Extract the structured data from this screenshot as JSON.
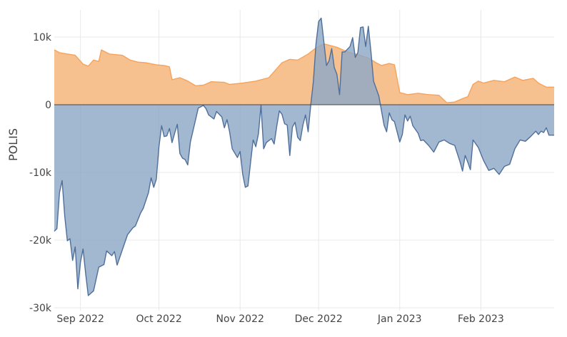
{
  "chart_data": {
    "type": "area",
    "title": "",
    "xlabel": "",
    "ylabel": "POLIS",
    "ylim": [
      -30000,
      14000
    ],
    "xlim": [
      "2022-08-22",
      "2023-03-01"
    ],
    "grid": true,
    "legend": "none",
    "y_ticks": [
      {
        "value": 10000,
        "label": "10k"
      },
      {
        "value": 0,
        "label": "0"
      },
      {
        "value": -10000,
        "label": "-10k"
      },
      {
        "value": -20000,
        "label": "-20k"
      },
      {
        "value": -30000,
        "label": "-30k"
      }
    ],
    "x_ticks": [
      {
        "value": "2022-09-01",
        "label": "Sep 2022"
      },
      {
        "value": "2022-10-01",
        "label": "Oct 2022"
      },
      {
        "value": "2022-11-01",
        "label": "Nov 2022"
      },
      {
        "value": "2022-12-01",
        "label": "Dec 2022"
      },
      {
        "value": "2023-01-01",
        "label": "Jan 2023"
      },
      {
        "value": "2023-02-01",
        "label": "Feb 2023"
      }
    ],
    "series": [
      {
        "color": "#f5a35c",
        "fill": "#f7c08f",
        "points": [
          [
            "2022-08-22",
            8100
          ],
          [
            "2022-08-24",
            7700
          ],
          [
            "2022-08-27",
            7500
          ],
          [
            "2022-08-30",
            7300
          ],
          [
            "2022-09-02",
            6000
          ],
          [
            "2022-09-04",
            5700
          ],
          [
            "2022-09-06",
            6600
          ],
          [
            "2022-09-08",
            6400
          ],
          [
            "2022-09-09",
            8100
          ],
          [
            "2022-09-12",
            7500
          ],
          [
            "2022-09-17",
            7300
          ],
          [
            "2022-09-20",
            6600
          ],
          [
            "2022-09-23",
            6300
          ],
          [
            "2022-09-26",
            6200
          ],
          [
            "2022-09-30",
            5900
          ],
          [
            "2022-10-03",
            5800
          ],
          [
            "2022-10-05",
            5600
          ],
          [
            "2022-10-06",
            3700
          ],
          [
            "2022-10-09",
            4000
          ],
          [
            "2022-10-12",
            3500
          ],
          [
            "2022-10-15",
            2800
          ],
          [
            "2022-10-18",
            2900
          ],
          [
            "2022-10-21",
            3400
          ],
          [
            "2022-10-26",
            3300
          ],
          [
            "2022-10-28",
            3000
          ],
          [
            "2022-11-02",
            3200
          ],
          [
            "2022-11-07",
            3500
          ],
          [
            "2022-11-12",
            4000
          ],
          [
            "2022-11-17",
            6200
          ],
          [
            "2022-11-20",
            6700
          ],
          [
            "2022-11-23",
            6600
          ],
          [
            "2022-11-27",
            7500
          ],
          [
            "2022-11-30",
            8400
          ],
          [
            "2022-12-03",
            9000
          ],
          [
            "2022-12-05",
            8800
          ],
          [
            "2022-12-08",
            8500
          ],
          [
            "2022-12-12",
            7800
          ],
          [
            "2022-12-16",
            7400
          ],
          [
            "2022-12-20",
            6900
          ],
          [
            "2022-12-23",
            6200
          ],
          [
            "2022-12-25",
            5800
          ],
          [
            "2022-12-28",
            6100
          ],
          [
            "2022-12-30",
            5900
          ],
          [
            "2023-01-01",
            1800
          ],
          [
            "2023-01-04",
            1500
          ],
          [
            "2023-01-08",
            1700
          ],
          [
            "2023-01-12",
            1500
          ],
          [
            "2023-01-16",
            1400
          ],
          [
            "2023-01-19",
            300
          ],
          [
            "2023-01-22",
            400
          ],
          [
            "2023-01-25",
            900
          ],
          [
            "2023-01-27",
            1200
          ],
          [
            "2023-01-29",
            3000
          ],
          [
            "2023-01-31",
            3500
          ],
          [
            "2023-02-02",
            3200
          ],
          [
            "2023-02-06",
            3600
          ],
          [
            "2023-02-10",
            3400
          ],
          [
            "2023-02-14",
            4100
          ],
          [
            "2023-02-17",
            3600
          ],
          [
            "2023-02-21",
            3900
          ],
          [
            "2023-02-23",
            3200
          ],
          [
            "2023-02-26",
            2600
          ],
          [
            "2023-03-01",
            2600
          ]
        ]
      },
      {
        "color": "#4f6f9a",
        "fill": "#8ea7c6",
        "points": [
          [
            "2022-08-22",
            -18700
          ],
          [
            "2022-08-23",
            -18300
          ],
          [
            "2022-08-24",
            -13000
          ],
          [
            "2022-08-25",
            -11200
          ],
          [
            "2022-08-26",
            -16500
          ],
          [
            "2022-08-27",
            -20100
          ],
          [
            "2022-08-28",
            -19800
          ],
          [
            "2022-08-29",
            -23000
          ],
          [
            "2022-08-30",
            -21000
          ],
          [
            "2022-08-31",
            -27200
          ],
          [
            "2022-09-01",
            -23300
          ],
          [
            "2022-09-02",
            -21300
          ],
          [
            "2022-09-03",
            -25000
          ],
          [
            "2022-09-04",
            -28200
          ],
          [
            "2022-09-06",
            -27500
          ],
          [
            "2022-09-08",
            -24000
          ],
          [
            "2022-09-10",
            -23600
          ],
          [
            "2022-09-11",
            -21600
          ],
          [
            "2022-09-13",
            -22300
          ],
          [
            "2022-09-14",
            -21700
          ],
          [
            "2022-09-15",
            -23700
          ],
          [
            "2022-09-18",
            -20300
          ],
          [
            "2022-09-19",
            -19200
          ],
          [
            "2022-09-21",
            -18200
          ],
          [
            "2022-09-22",
            -17900
          ],
          [
            "2022-09-24",
            -16000
          ],
          [
            "2022-09-25",
            -15300
          ],
          [
            "2022-09-27",
            -13000
          ],
          [
            "2022-09-28",
            -10800
          ],
          [
            "2022-09-29",
            -12200
          ],
          [
            "2022-09-30",
            -11000
          ],
          [
            "2022-10-01",
            -6200
          ],
          [
            "2022-10-02",
            -3100
          ],
          [
            "2022-10-03",
            -4700
          ],
          [
            "2022-10-04",
            -4600
          ],
          [
            "2022-10-05",
            -3500
          ],
          [
            "2022-10-06",
            -5600
          ],
          [
            "2022-10-07",
            -4200
          ],
          [
            "2022-10-08",
            -2900
          ],
          [
            "2022-10-09",
            -7200
          ],
          [
            "2022-10-10",
            -7900
          ],
          [
            "2022-10-11",
            -8100
          ],
          [
            "2022-10-12",
            -8900
          ],
          [
            "2022-10-13",
            -5500
          ],
          [
            "2022-10-15",
            -2200
          ],
          [
            "2022-10-16",
            -500
          ],
          [
            "2022-10-18",
            -100
          ],
          [
            "2022-10-19",
            -600
          ],
          [
            "2022-10-20",
            -1500
          ],
          [
            "2022-10-22",
            -2100
          ],
          [
            "2022-10-23",
            -1000
          ],
          [
            "2022-10-25",
            -1800
          ],
          [
            "2022-10-26",
            -3400
          ],
          [
            "2022-10-27",
            -2200
          ],
          [
            "2022-10-28",
            -4000
          ],
          [
            "2022-10-29",
            -6500
          ],
          [
            "2022-10-31",
            -7800
          ],
          [
            "2022-11-01",
            -6900
          ],
          [
            "2022-11-02",
            -10300
          ],
          [
            "2022-11-03",
            -12200
          ],
          [
            "2022-11-04",
            -12000
          ],
          [
            "2022-11-05",
            -8500
          ],
          [
            "2022-11-06",
            -5200
          ],
          [
            "2022-11-07",
            -6200
          ],
          [
            "2022-11-08",
            -4300
          ],
          [
            "2022-11-09",
            -100
          ],
          [
            "2022-11-10",
            -6500
          ],
          [
            "2022-11-11",
            -5600
          ],
          [
            "2022-11-13",
            -5000
          ],
          [
            "2022-11-14",
            -5800
          ],
          [
            "2022-11-15",
            -3200
          ],
          [
            "2022-11-16",
            -900
          ],
          [
            "2022-11-17",
            -1400
          ],
          [
            "2022-11-18",
            -2800
          ],
          [
            "2022-11-19",
            -3000
          ],
          [
            "2022-11-20",
            -7500
          ],
          [
            "2022-11-21",
            -3300
          ],
          [
            "2022-11-22",
            -2600
          ],
          [
            "2022-11-23",
            -4800
          ],
          [
            "2022-11-24",
            -5300
          ],
          [
            "2022-11-25",
            -3000
          ],
          [
            "2022-11-26",
            -1500
          ],
          [
            "2022-11-27",
            -4000
          ],
          [
            "2022-11-28",
            0
          ],
          [
            "2022-11-29",
            3400
          ],
          [
            "2022-11-30",
            9000
          ],
          [
            "2022-12-01",
            12300
          ],
          [
            "2022-12-02",
            12800
          ],
          [
            "2022-12-03",
            9300
          ],
          [
            "2022-12-04",
            5800
          ],
          [
            "2022-12-05",
            6500
          ],
          [
            "2022-12-06",
            8300
          ],
          [
            "2022-12-07",
            5500
          ],
          [
            "2022-12-08",
            4500
          ],
          [
            "2022-12-09",
            1500
          ],
          [
            "2022-12-10",
            7800
          ],
          [
            "2022-12-11",
            7800
          ],
          [
            "2022-12-12",
            8200
          ],
          [
            "2022-12-13",
            8600
          ],
          [
            "2022-12-14",
            9900
          ],
          [
            "2022-12-15",
            7000
          ],
          [
            "2022-12-16",
            7700
          ],
          [
            "2022-12-17",
            11400
          ],
          [
            "2022-12-18",
            11500
          ],
          [
            "2022-12-19",
            8600
          ],
          [
            "2022-12-20",
            11600
          ],
          [
            "2022-12-21",
            7800
          ],
          [
            "2022-12-22",
            3500
          ],
          [
            "2022-12-24",
            1300
          ],
          [
            "2022-12-26",
            -3000
          ],
          [
            "2022-12-27",
            -4000
          ],
          [
            "2022-12-28",
            -1200
          ],
          [
            "2022-12-29",
            -2200
          ],
          [
            "2022-12-30",
            -2500
          ],
          [
            "2023-01-01",
            -5500
          ],
          [
            "2023-01-02",
            -4400
          ],
          [
            "2023-01-03",
            -1500
          ],
          [
            "2023-01-04",
            -2400
          ],
          [
            "2023-01-05",
            -1700
          ],
          [
            "2023-01-06",
            -3100
          ],
          [
            "2023-01-08",
            -4200
          ],
          [
            "2023-01-09",
            -5300
          ],
          [
            "2023-01-10",
            -5200
          ],
          [
            "2023-01-12",
            -6000
          ],
          [
            "2023-01-14",
            -7000
          ],
          [
            "2023-01-16",
            -5500
          ],
          [
            "2023-01-18",
            -5200
          ],
          [
            "2023-01-20",
            -5700
          ],
          [
            "2023-01-22",
            -6000
          ],
          [
            "2023-01-24",
            -8400
          ],
          [
            "2023-01-25",
            -9800
          ],
          [
            "2023-01-26",
            -7500
          ],
          [
            "2023-01-27",
            -8500
          ],
          [
            "2023-01-28",
            -9600
          ],
          [
            "2023-01-29",
            -5200
          ],
          [
            "2023-01-31",
            -6300
          ],
          [
            "2023-02-02",
            -8200
          ],
          [
            "2023-02-04",
            -9700
          ],
          [
            "2023-02-06",
            -9400
          ],
          [
            "2023-02-08",
            -10300
          ],
          [
            "2023-02-10",
            -9100
          ],
          [
            "2023-02-12",
            -8800
          ],
          [
            "2023-02-14",
            -6500
          ],
          [
            "2023-02-16",
            -5200
          ],
          [
            "2023-02-18",
            -5400
          ],
          [
            "2023-02-20",
            -4700
          ],
          [
            "2023-02-22",
            -3900
          ],
          [
            "2023-02-23",
            -4400
          ],
          [
            "2023-02-24",
            -3900
          ],
          [
            "2023-02-25",
            -4100
          ],
          [
            "2023-02-26",
            -3400
          ],
          [
            "2023-02-27",
            -4500
          ],
          [
            "2023-03-01",
            -4500
          ]
        ]
      }
    ]
  }
}
